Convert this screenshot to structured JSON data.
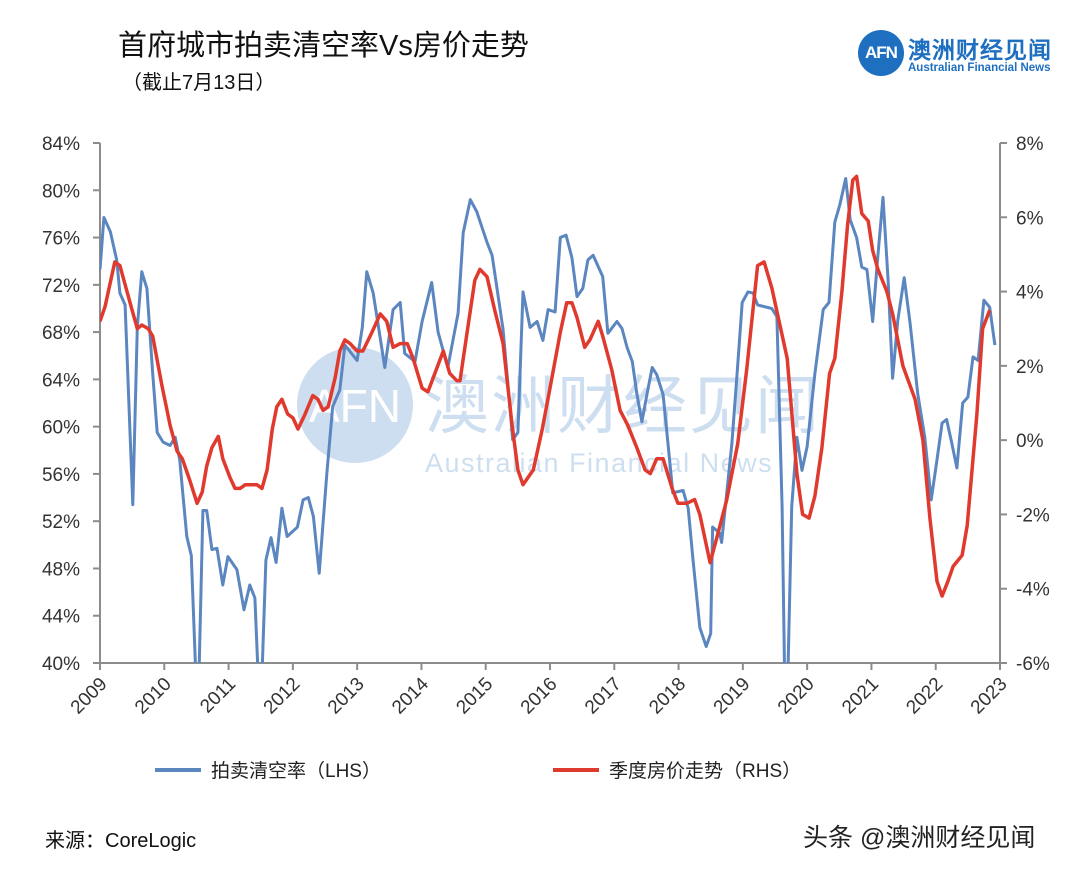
{
  "header": {
    "title": "首府城市拍卖清空率Vs房价走势",
    "subtitle": "（截止7月13日）"
  },
  "logo": {
    "mark": "AFN",
    "name_cn": "澳洲财经见闻",
    "name_en": "Australian Financial News",
    "color": "#1f6fc0"
  },
  "watermark": {
    "mark": "AFN",
    "name_cn": "澳洲财经见闻",
    "name_en": "Australian Financial News"
  },
  "footer": {
    "source": "来源：CoreLogic",
    "credit": "头条 @澳洲财经见闻"
  },
  "chart_data": {
    "type": "line",
    "title": "首府城市拍卖清空率Vs房价走势",
    "xlim": [
      2009,
      2023
    ],
    "x_ticks": [
      "2009",
      "2010",
      "2011",
      "2012",
      "2013",
      "2014",
      "2015",
      "2016",
      "2017",
      "2018",
      "2019",
      "2020",
      "2021",
      "2022",
      "2023"
    ],
    "y_left": {
      "lim": [
        40,
        84
      ],
      "ticks": [
        "84%",
        "80%",
        "76%",
        "72%",
        "68%",
        "64%",
        "60%",
        "56%",
        "52%",
        "48%",
        "44%",
        "40%"
      ]
    },
    "y_right": {
      "lim": [
        -6,
        8
      ],
      "ticks": [
        "8%",
        "6%",
        "4%",
        "2%",
        "0%",
        "-2%",
        "-4%",
        "-6%"
      ]
    },
    "grid": false,
    "legend_position": "bottom",
    "series": [
      {
        "name": "拍卖清空率（LHS）",
        "axis": "left",
        "color": "#5b86c0",
        "points": [
          [
            2009.0,
            73.3
          ],
          [
            2009.06,
            77.7
          ],
          [
            2009.16,
            76.5
          ],
          [
            2009.26,
            74.1
          ],
          [
            2009.31,
            71.3
          ],
          [
            2009.39,
            70.3
          ],
          [
            2009.51,
            53.4
          ],
          [
            2009.58,
            68.4
          ],
          [
            2009.65,
            73.1
          ],
          [
            2009.73,
            71.7
          ],
          [
            2009.82,
            64.5
          ],
          [
            2009.89,
            59.5
          ],
          [
            2009.98,
            58.7
          ],
          [
            2010.09,
            58.4
          ],
          [
            2010.17,
            59.1
          ],
          [
            2010.24,
            57.2
          ],
          [
            2010.35,
            50.7
          ],
          [
            2010.42,
            49.1
          ],
          [
            2010.49,
            39
          ],
          [
            2010.54,
            39
          ],
          [
            2010.6,
            52.9
          ],
          [
            2010.66,
            52.9
          ],
          [
            2010.74,
            49.6
          ],
          [
            2010.82,
            49.7
          ],
          [
            2010.91,
            46.6
          ],
          [
            2010.99,
            49.0
          ],
          [
            2011.13,
            47.9
          ],
          [
            2011.24,
            44.5
          ],
          [
            2011.33,
            46.6
          ],
          [
            2011.41,
            45.5
          ],
          [
            2011.46,
            39
          ],
          [
            2011.52,
            39
          ],
          [
            2011.58,
            48.7
          ],
          [
            2011.66,
            50.6
          ],
          [
            2011.74,
            48.5
          ],
          [
            2011.83,
            53.1
          ],
          [
            2011.91,
            50.7
          ],
          [
            2012.07,
            51.5
          ],
          [
            2012.16,
            53.8
          ],
          [
            2012.24,
            54.0
          ],
          [
            2012.32,
            52.4
          ],
          [
            2012.41,
            47.6
          ],
          [
            2012.53,
            56.1
          ],
          [
            2012.62,
            61.7
          ],
          [
            2012.73,
            63.1
          ],
          [
            2012.81,
            66.9
          ],
          [
            2013.0,
            65.6
          ],
          [
            2013.08,
            68.4
          ],
          [
            2013.15,
            73.1
          ],
          [
            2013.25,
            71.3
          ],
          [
            2013.43,
            65.0
          ],
          [
            2013.56,
            69.9
          ],
          [
            2013.67,
            70.5
          ],
          [
            2013.74,
            66.2
          ],
          [
            2013.9,
            65.5
          ],
          [
            2014.01,
            68.9
          ],
          [
            2014.16,
            72.2
          ],
          [
            2014.26,
            68.0
          ],
          [
            2014.41,
            65.0
          ],
          [
            2014.57,
            69.6
          ],
          [
            2014.65,
            76.4
          ],
          [
            2014.76,
            79.2
          ],
          [
            2014.86,
            78.2
          ],
          [
            2015.02,
            75.6
          ],
          [
            2015.1,
            74.5
          ],
          [
            2015.27,
            68.2
          ],
          [
            2015.42,
            58.9
          ],
          [
            2015.5,
            59.5
          ],
          [
            2015.58,
            71.4
          ],
          [
            2015.69,
            68.4
          ],
          [
            2015.8,
            68.9
          ],
          [
            2015.89,
            67.3
          ],
          [
            2015.97,
            69.9
          ],
          [
            2016.08,
            69.7
          ],
          [
            2016.16,
            76.0
          ],
          [
            2016.25,
            76.2
          ],
          [
            2016.34,
            74.3
          ],
          [
            2016.42,
            71.0
          ],
          [
            2016.51,
            71.7
          ],
          [
            2016.59,
            74.1
          ],
          [
            2016.67,
            74.5
          ],
          [
            2016.82,
            72.7
          ],
          [
            2016.9,
            67.9
          ],
          [
            2017.04,
            68.9
          ],
          [
            2017.12,
            68.3
          ],
          [
            2017.2,
            66.7
          ],
          [
            2017.28,
            65.5
          ],
          [
            2017.35,
            62.8
          ],
          [
            2017.43,
            60.4
          ],
          [
            2017.51,
            62.8
          ],
          [
            2017.59,
            65.0
          ],
          [
            2017.66,
            64.4
          ],
          [
            2017.76,
            62.7
          ],
          [
            2017.83,
            58.9
          ],
          [
            2017.91,
            54.4
          ],
          [
            2018.07,
            54.6
          ],
          [
            2018.15,
            53.1
          ],
          [
            2018.22,
            49.0
          ],
          [
            2018.33,
            43.0
          ],
          [
            2018.43,
            41.4
          ],
          [
            2018.5,
            42.5
          ],
          [
            2018.53,
            51.5
          ],
          [
            2018.64,
            51.0
          ],
          [
            2018.67,
            50.2
          ],
          [
            2018.83,
            58.6
          ],
          [
            2018.91,
            64.5
          ],
          [
            2018.99,
            70.5
          ],
          [
            2019.08,
            71.4
          ],
          [
            2019.16,
            71.3
          ],
          [
            2019.23,
            70.3
          ],
          [
            2019.45,
            70.0
          ],
          [
            2019.53,
            69.3
          ],
          [
            2019.61,
            53.2
          ],
          [
            2019.65,
            39
          ],
          [
            2019.7,
            39
          ],
          [
            2019.76,
            53.2
          ],
          [
            2019.84,
            59.1
          ],
          [
            2019.92,
            56.3
          ],
          [
            2020.0,
            58.3
          ],
          [
            2020.12,
            64.5
          ],
          [
            2020.25,
            69.9
          ],
          [
            2020.34,
            70.5
          ],
          [
            2020.43,
            77.3
          ],
          [
            2020.51,
            78.8
          ],
          [
            2020.6,
            81.0
          ],
          [
            2020.67,
            77.5
          ],
          [
            2020.77,
            76.0
          ],
          [
            2020.85,
            73.5
          ],
          [
            2020.93,
            73.3
          ],
          [
            2021.02,
            68.9
          ],
          [
            2021.09,
            73.8
          ],
          [
            2021.18,
            79.4
          ],
          [
            2021.26,
            72.4
          ],
          [
            2021.33,
            64.1
          ],
          [
            2021.41,
            69.0
          ],
          [
            2021.51,
            72.6
          ],
          [
            2021.6,
            68.8
          ],
          [
            2021.72,
            62.8
          ],
          [
            2021.83,
            59.1
          ],
          [
            2021.93,
            53.8
          ],
          [
            2022.02,
            57.2
          ],
          [
            2022.1,
            60.3
          ],
          [
            2022.17,
            60.6
          ],
          [
            2022.25,
            58.6
          ],
          [
            2022.33,
            56.5
          ],
          [
            2022.42,
            62.0
          ],
          [
            2022.5,
            62.5
          ],
          [
            2022.58,
            65.9
          ],
          [
            2022.66,
            65.6
          ],
          [
            2022.75,
            70.7
          ],
          [
            2022.84,
            70.1
          ],
          [
            2022.92,
            66.9
          ]
        ]
      },
      {
        "name": "季度房价走势（RHS）",
        "axis": "right",
        "color": "#e03a2f",
        "points": [
          [
            2009.0,
            3.2
          ],
          [
            2009.08,
            3.6
          ],
          [
            2009.23,
            4.8
          ],
          [
            2009.31,
            4.7
          ],
          [
            2009.42,
            4.0
          ],
          [
            2009.5,
            3.5
          ],
          [
            2009.58,
            3.0
          ],
          [
            2009.65,
            3.1
          ],
          [
            2009.75,
            3.0
          ],
          [
            2009.82,
            2.8
          ],
          [
            2009.96,
            1.5
          ],
          [
            2010.09,
            0.4
          ],
          [
            2010.2,
            -0.3
          ],
          [
            2010.28,
            -0.5
          ],
          [
            2010.4,
            -1.1
          ],
          [
            2010.51,
            -1.7
          ],
          [
            2010.59,
            -1.4
          ],
          [
            2010.66,
            -0.7
          ],
          [
            2010.74,
            -0.2
          ],
          [
            2010.84,
            0.1
          ],
          [
            2010.91,
            -0.5
          ],
          [
            2011.02,
            -1.0
          ],
          [
            2011.1,
            -1.3
          ],
          [
            2011.18,
            -1.3
          ],
          [
            2011.26,
            -1.2
          ],
          [
            2011.44,
            -1.2
          ],
          [
            2011.52,
            -1.3
          ],
          [
            2011.6,
            -0.8
          ],
          [
            2011.68,
            0.3
          ],
          [
            2011.75,
            0.9
          ],
          [
            2011.83,
            1.1
          ],
          [
            2011.92,
            0.7
          ],
          [
            2012.0,
            0.6
          ],
          [
            2012.08,
            0.3
          ],
          [
            2012.19,
            0.7
          ],
          [
            2012.31,
            1.2
          ],
          [
            2012.39,
            1.1
          ],
          [
            2012.47,
            0.8
          ],
          [
            2012.55,
            0.9
          ],
          [
            2012.66,
            1.7
          ],
          [
            2012.73,
            2.4
          ],
          [
            2012.81,
            2.7
          ],
          [
            2012.89,
            2.6
          ],
          [
            2013.0,
            2.4
          ],
          [
            2013.09,
            2.4
          ],
          [
            2013.23,
            2.9
          ],
          [
            2013.36,
            3.4
          ],
          [
            2013.46,
            3.2
          ],
          [
            2013.56,
            2.5
          ],
          [
            2013.67,
            2.6
          ],
          [
            2013.78,
            2.6
          ],
          [
            2013.87,
            2.2
          ],
          [
            2014.01,
            1.4
          ],
          [
            2014.1,
            1.3
          ],
          [
            2014.21,
            1.8
          ],
          [
            2014.34,
            2.4
          ],
          [
            2014.44,
            1.8
          ],
          [
            2014.55,
            1.6
          ],
          [
            2014.6,
            1.6
          ],
          [
            2014.71,
            2.9
          ],
          [
            2014.83,
            4.3
          ],
          [
            2014.91,
            4.6
          ],
          [
            2015.02,
            4.4
          ],
          [
            2015.14,
            3.5
          ],
          [
            2015.27,
            2.6
          ],
          [
            2015.41,
            0.4
          ],
          [
            2015.5,
            -0.8
          ],
          [
            2015.58,
            -1.2
          ],
          [
            2015.74,
            -0.8
          ],
          [
            2015.88,
            0.3
          ],
          [
            2016.0,
            1.4
          ],
          [
            2016.16,
            2.9
          ],
          [
            2016.26,
            3.7
          ],
          [
            2016.34,
            3.7
          ],
          [
            2016.42,
            3.3
          ],
          [
            2016.54,
            2.5
          ],
          [
            2016.62,
            2.7
          ],
          [
            2016.75,
            3.2
          ],
          [
            2016.82,
            2.8
          ],
          [
            2016.96,
            1.9
          ],
          [
            2017.09,
            0.8
          ],
          [
            2017.21,
            0.4
          ],
          [
            2017.35,
            -0.2
          ],
          [
            2017.48,
            -0.8
          ],
          [
            2017.56,
            -0.9
          ],
          [
            2017.66,
            -0.5
          ],
          [
            2017.76,
            -0.5
          ],
          [
            2017.9,
            -1.3
          ],
          [
            2017.99,
            -1.7
          ],
          [
            2018.13,
            -1.7
          ],
          [
            2018.25,
            -1.6
          ],
          [
            2018.33,
            -2.0
          ],
          [
            2018.49,
            -3.3
          ],
          [
            2018.6,
            -2.6
          ],
          [
            2018.75,
            -1.6
          ],
          [
            2018.92,
            -0.1
          ],
          [
            2019.06,
            1.9
          ],
          [
            2019.23,
            4.7
          ],
          [
            2019.33,
            4.8
          ],
          [
            2019.45,
            4.1
          ],
          [
            2019.69,
            2.2
          ],
          [
            2019.84,
            -0.9
          ],
          [
            2019.93,
            -2.0
          ],
          [
            2020.03,
            -2.1
          ],
          [
            2020.12,
            -1.5
          ],
          [
            2020.23,
            -0.2
          ],
          [
            2020.35,
            1.8
          ],
          [
            2020.43,
            2.2
          ],
          [
            2020.54,
            4.0
          ],
          [
            2020.63,
            5.8
          ],
          [
            2020.71,
            7.0
          ],
          [
            2020.77,
            7.1
          ],
          [
            2020.85,
            6.1
          ],
          [
            2020.95,
            5.9
          ],
          [
            2021.02,
            5.1
          ],
          [
            2021.1,
            4.6
          ],
          [
            2021.24,
            4.0
          ],
          [
            2021.33,
            3.4
          ],
          [
            2021.49,
            2.0
          ],
          [
            2021.68,
            1.1
          ],
          [
            2021.8,
            0.0
          ],
          [
            2021.91,
            -2.1
          ],
          [
            2022.02,
            -3.8
          ],
          [
            2022.1,
            -4.2
          ],
          [
            2022.19,
            -3.8
          ],
          [
            2022.27,
            -3.4
          ],
          [
            2022.41,
            -3.1
          ],
          [
            2022.49,
            -2.3
          ],
          [
            2022.64,
            0.7
          ],
          [
            2022.73,
            3.0
          ],
          [
            2022.84,
            3.5
          ]
        ]
      }
    ]
  }
}
